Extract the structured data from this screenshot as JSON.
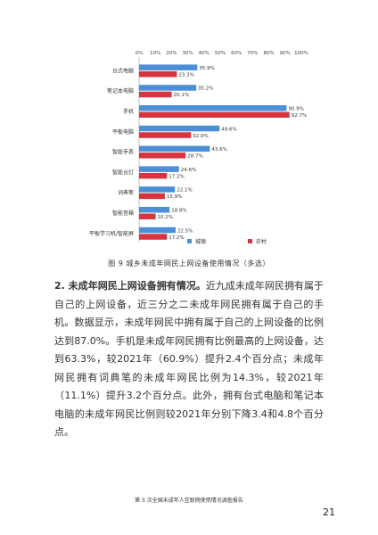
{
  "figure": {
    "caption": "图 9 城乡未成年网民上网设备使用情况（多选）"
  },
  "chart_data": {
    "type": "bar",
    "orientation": "horizontal",
    "categories": [
      "台式电脑",
      "笔记本电脑",
      "手机",
      "平板电脑",
      "智能手表",
      "智能台灯",
      "词典笔",
      "智能音箱",
      "平板学习机/智能屏"
    ],
    "series": [
      {
        "name": "城镇",
        "color": "#4b8fd6",
        "values": [
          35.9,
          35.2,
          90.9,
          49.6,
          43.6,
          24.6,
          22.1,
          18.8,
          22.5
        ],
        "labels": [
          "35.9%",
          "35.2%",
          "90.9%",
          "49.6%",
          "43.6%",
          "24.6%",
          "22.1%",
          "18.8%",
          "22.5%"
        ]
      },
      {
        "name": "农村",
        "color": "#d7343f",
        "values": [
          23.3,
          20.1,
          92.7,
          32.0,
          28.7,
          17.2,
          15.9,
          10.2,
          17.2
        ],
        "labels": [
          "23.3%",
          "20.1%",
          "92.7%",
          "32.0%",
          "28.7%",
          "17.2%",
          "15.9%",
          "10.2%",
          "17.2%"
        ]
      }
    ],
    "x_ticks": [
      "0%",
      "10%",
      "20%",
      "30%",
      "40%",
      "50%",
      "60%",
      "70%",
      "80%",
      "90%",
      "100%"
    ],
    "xlim": [
      0,
      100
    ],
    "grid": false,
    "legend_position": "bottom-center"
  },
  "text": {
    "para1_lead": "2. 未成年网民上网设备拥有情况。",
    "para1_body": "近九成未成年网民拥有属于自己的上网设备，近三分之二未成年网民拥有属于自己的手机。数据显示，未成年网民中拥有属于自己的上网设备的比例达到87.0%。手机是未成年网民拥有比例最高的上网设备，达到63.3%，较2021年（60.9%）提升2.4个百分点；未成年网民拥有词典笔的未成年网民比例为14.3%，较2021年（11.1%）提升3.2个百分点。此外，拥有台式电脑和笔记本电脑的未成年网民比例则较2021年分别下降3.4和4.8个百分点。"
  },
  "footer": {
    "report_title": "第 5 次全国未成年人互联网使用情况调查报告",
    "page_number": "21"
  }
}
